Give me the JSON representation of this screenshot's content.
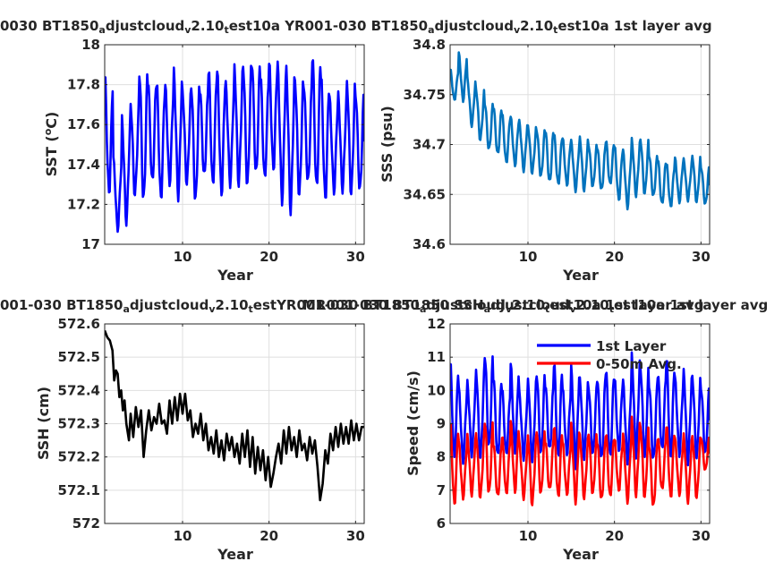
{
  "chart_data": [
    {
      "type": "line",
      "title_main": "0030 BT1850",
      "title_parts": [
        {
          "text": "0030 BT1850",
          "sub": false
        },
        {
          "text": "a",
          "sub": true
        },
        {
          "text": "djustcloud",
          "sub": false
        },
        {
          "text": "v",
          "sub": true
        },
        {
          "text": "2.10",
          "sub": false
        },
        {
          "text": "t",
          "sub": true
        },
        {
          "text": "est10a YR001-030 BT1850",
          "sub": false
        },
        {
          "text": "a",
          "sub": true
        },
        {
          "text": "djustcloud",
          "sub": false
        },
        {
          "text": "v",
          "sub": true
        },
        {
          "text": "2.10",
          "sub": false
        },
        {
          "text": "t",
          "sub": true
        },
        {
          "text": "est10a 1st layer avg",
          "sub": false
        }
      ],
      "xlabel": "Year",
      "ylabel": "SST (",
      "ylabel_sup": "o",
      "ylabel_tail": "C)",
      "xlim": [
        1,
        31
      ],
      "ylim": [
        17,
        18
      ],
      "xticks": [
        10,
        20,
        30
      ],
      "yticks": [
        17,
        17.2,
        17.4,
        17.6,
        17.8,
        18
      ],
      "xtick_labels": [
        "10",
        "20",
        "30"
      ],
      "ytick_labels": [
        "17",
        "17.2",
        "17.4",
        "17.6",
        "17.8",
        "18"
      ],
      "grid": true,
      "series": [
        {
          "color": "#0000ff",
          "seasonal": true,
          "peaks": [
            17.84,
            17.42,
            17.62,
            17.7,
            17.87,
            17.82,
            17.8,
            17.78,
            17.85,
            17.76,
            17.8,
            17.78,
            17.87,
            17.85,
            17.79,
            17.88,
            17.9,
            17.92,
            17.84,
            17.9,
            17.88,
            17.86,
            17.82,
            17.81,
            17.95,
            17.83,
            17.72,
            17.74,
            17.81,
            17.76
          ],
          "troughs": [
            17.26,
            17.08,
            17.12,
            17.25,
            17.22,
            17.31,
            17.23,
            17.31,
            17.25,
            17.31,
            17.22,
            17.34,
            17.3,
            17.26,
            17.31,
            17.31,
            17.3,
            17.35,
            17.33,
            17.38,
            17.23,
            17.18,
            17.25,
            17.31,
            17.28,
            17.23,
            17.27,
            17.28,
            17.26,
            17.27
          ]
        }
      ]
    },
    {
      "type": "line",
      "title_parts": [],
      "xlabel": "Year",
      "ylabel": "SSS (psu)",
      "xlim": [
        1,
        31
      ],
      "ylim": [
        34.6,
        34.8
      ],
      "xticks": [
        10,
        20,
        30
      ],
      "yticks": [
        34.6,
        34.65,
        34.7,
        34.75,
        34.8
      ],
      "xtick_labels": [
        "10",
        "20",
        "30"
      ],
      "ytick_labels": [
        "34.6",
        "34.65",
        "34.7",
        "34.75",
        "34.8"
      ],
      "grid": true,
      "series": [
        {
          "color": "#0072bd",
          "seasonal": true,
          "peaks": [
            34.775,
            34.79,
            34.765,
            34.755,
            34.742,
            34.738,
            34.73,
            34.726,
            34.722,
            34.718,
            34.715,
            34.715,
            34.71,
            34.705,
            34.702,
            34.706,
            34.7,
            34.698,
            34.704,
            34.697,
            34.692,
            34.704,
            34.705,
            34.69,
            34.685,
            34.68,
            34.685,
            34.684,
            34.688,
            34.678
          ],
          "troughs": [
            34.745,
            34.745,
            34.72,
            34.705,
            34.695,
            34.69,
            34.682,
            34.68,
            34.675,
            34.672,
            34.668,
            34.662,
            34.66,
            34.66,
            34.655,
            34.655,
            34.658,
            34.654,
            34.66,
            34.645,
            34.638,
            34.65,
            34.651,
            34.648,
            34.64,
            34.638,
            34.643,
            34.645,
            34.643,
            34.64
          ]
        }
      ]
    },
    {
      "type": "line",
      "title_parts": [
        {
          "text": "001-030 BT1850",
          "sub": false
        },
        {
          "text": "a",
          "sub": true
        },
        {
          "text": "djustcloud",
          "sub": false
        },
        {
          "text": "v",
          "sub": true
        },
        {
          "text": "2.10",
          "sub": false
        },
        {
          "text": "t",
          "sub": true
        },
        {
          "text": "estYR001-030 BT1850",
          "sub": false
        },
        {
          "text": "a",
          "sub": true
        },
        {
          "text": "djustcloud",
          "sub": false
        },
        {
          "text": "v",
          "sub": true
        },
        {
          "text": "2.10",
          "sub": false
        },
        {
          "text": "t",
          "sub": true
        },
        {
          "text": "est10a 1st layer avg",
          "sub": false
        }
      ],
      "xlabel": "Year",
      "ylabel": "SSH (cm)",
      "xlim": [
        1,
        31
      ],
      "ylim": [
        572,
        572.6
      ],
      "xticks": [
        10,
        20,
        30
      ],
      "yticks": [
        572,
        572.1,
        572.2,
        572.3,
        572.4,
        572.5,
        572.6
      ],
      "xtick_labels": [
        "10",
        "20",
        "30"
      ],
      "ytick_labels": [
        "572",
        "572.1",
        "572.2",
        "572.3",
        "572.4",
        "572.5",
        "572.6"
      ],
      "grid": true,
      "series": [
        {
          "color": "#000000",
          "seasonal": false,
          "x": [
            1.0,
            1.3,
            1.6,
            1.9,
            2.1,
            2.3,
            2.5,
            2.7,
            2.9,
            3.1,
            3.3,
            3.5,
            3.8,
            4.0,
            4.3,
            4.6,
            4.9,
            5.2,
            5.5,
            5.8,
            6.1,
            6.4,
            6.7,
            7.0,
            7.3,
            7.6,
            7.9,
            8.2,
            8.5,
            8.8,
            9.1,
            9.4,
            9.7,
            10.0,
            10.3,
            10.6,
            10.9,
            11.2,
            11.5,
            11.8,
            12.1,
            12.4,
            12.7,
            13.0,
            13.3,
            13.6,
            13.9,
            14.2,
            14.5,
            14.8,
            15.1,
            15.4,
            15.7,
            16.0,
            16.3,
            16.6,
            16.9,
            17.2,
            17.5,
            17.8,
            18.1,
            18.4,
            18.7,
            19.0,
            19.3,
            19.6,
            19.9,
            20.2,
            20.5,
            20.8,
            21.1,
            21.4,
            21.7,
            22.0,
            22.3,
            22.6,
            22.9,
            23.2,
            23.5,
            23.8,
            24.1,
            24.4,
            24.7,
            25.0,
            25.3,
            25.6,
            25.9,
            26.2,
            26.5,
            26.8,
            27.1,
            27.4,
            27.7,
            28.0,
            28.3,
            28.6,
            28.9,
            29.2,
            29.5,
            29.8,
            30.1,
            30.4,
            30.7,
            31.0
          ],
          "y": [
            572.58,
            572.56,
            572.55,
            572.52,
            572.43,
            572.46,
            572.45,
            572.38,
            572.4,
            572.34,
            572.37,
            572.3,
            572.25,
            572.33,
            572.26,
            572.35,
            572.29,
            572.34,
            572.2,
            572.28,
            572.34,
            572.28,
            572.32,
            572.3,
            572.36,
            572.3,
            572.31,
            572.27,
            572.37,
            572.3,
            572.38,
            572.31,
            572.39,
            572.33,
            572.39,
            572.31,
            572.34,
            572.26,
            572.3,
            572.27,
            572.33,
            572.25,
            572.3,
            572.22,
            572.26,
            572.21,
            572.28,
            572.2,
            572.25,
            572.19,
            572.27,
            572.22,
            572.26,
            572.2,
            572.24,
            572.18,
            572.27,
            572.2,
            572.28,
            572.17,
            572.26,
            572.15,
            572.23,
            572.16,
            572.22,
            572.13,
            572.2,
            572.11,
            572.15,
            572.2,
            572.24,
            572.18,
            572.28,
            572.21,
            572.29,
            572.22,
            572.26,
            572.2,
            572.28,
            572.22,
            572.24,
            572.19,
            572.26,
            572.21,
            572.25,
            572.17,
            572.07,
            572.12,
            572.22,
            572.18,
            572.27,
            572.22,
            572.29,
            572.23,
            572.3,
            572.24,
            572.29,
            572.24,
            572.31,
            572.25,
            572.3,
            572.25,
            572.29,
            572.29
          ]
        }
      ]
    },
    {
      "type": "line",
      "title_parts": [
        {
          "text": "MR001-030 BT1850 SSH",
          "sub": false
        },
        {
          "text": "a",
          "sub": true
        },
        {
          "text": "djustcloud",
          "sub": false
        },
        {
          "text": "v",
          "sub": true
        },
        {
          "text": "2.10",
          "sub": false
        },
        {
          "text": "t",
          "sub": true
        },
        {
          "text": "est10a 1st layer avg",
          "sub": false
        }
      ],
      "xlabel": "Year",
      "ylabel": "Speed (cm/s)",
      "xlim": [
        1,
        31
      ],
      "ylim": [
        6,
        12
      ],
      "xticks": [
        10,
        20,
        30
      ],
      "yticks": [
        6,
        7,
        8,
        9,
        10,
        11,
        12
      ],
      "xtick_labels": [
        "10",
        "20",
        "30"
      ],
      "ytick_labels": [
        "6",
        "7",
        "8",
        "9",
        "10",
        "11",
        "12"
      ],
      "grid": true,
      "legend": {
        "position": "top",
        "entries": [
          "1st Layer",
          "0-50m Avg."
        ]
      },
      "series": [
        {
          "name": "1st Layer",
          "color": "#0000ff",
          "seasonal": true,
          "peaks": [
            10.8,
            10.0,
            10.2,
            10.6,
            11.1,
            10.4,
            10.0,
            10.7,
            9.9,
            10.3,
            10.5,
            10.2,
            10.8,
            10.0,
            10.6,
            10.3,
            10.1,
            10.4,
            10.6,
            10.3,
            10.2,
            11.0,
            10.7,
            10.2,
            10.5,
            10.9,
            10.3,
            10.5,
            10.4,
            10.1
          ],
          "troughs": [
            8.0,
            7.9,
            8.1,
            8.0,
            8.3,
            8.0,
            8.1,
            8.2,
            8.0,
            7.9,
            8.1,
            8.2,
            8.0,
            8.1,
            7.8,
            8.0,
            8.1,
            7.9,
            8.0,
            8.2,
            7.9,
            8.1,
            8.0,
            7.9,
            8.2,
            8.0,
            8.1,
            7.9,
            8.0,
            8.1
          ]
        },
        {
          "name": "0-50m Avg.",
          "color": "#ff0000",
          "seasonal": true,
          "peaks": [
            9.0,
            8.4,
            8.6,
            8.7,
            9.1,
            8.4,
            8.6,
            9.0,
            8.4,
            8.6,
            8.8,
            8.5,
            8.9,
            8.4,
            8.9,
            8.6,
            8.7,
            8.5,
            8.7,
            8.5,
            8.6,
            9.1,
            8.9,
            8.4,
            8.6,
            8.9,
            8.5,
            8.6,
            8.6,
            8.6
          ],
          "troughs": [
            6.6,
            6.8,
            6.9,
            6.8,
            6.9,
            6.8,
            6.9,
            7.0,
            6.8,
            6.6,
            6.9,
            7.0,
            6.8,
            6.9,
            6.7,
            6.8,
            6.9,
            6.7,
            6.8,
            7.0,
            6.7,
            6.9,
            6.8,
            6.5,
            7.0,
            6.8,
            6.9,
            6.7,
            6.8,
            7.6
          ]
        }
      ]
    }
  ]
}
